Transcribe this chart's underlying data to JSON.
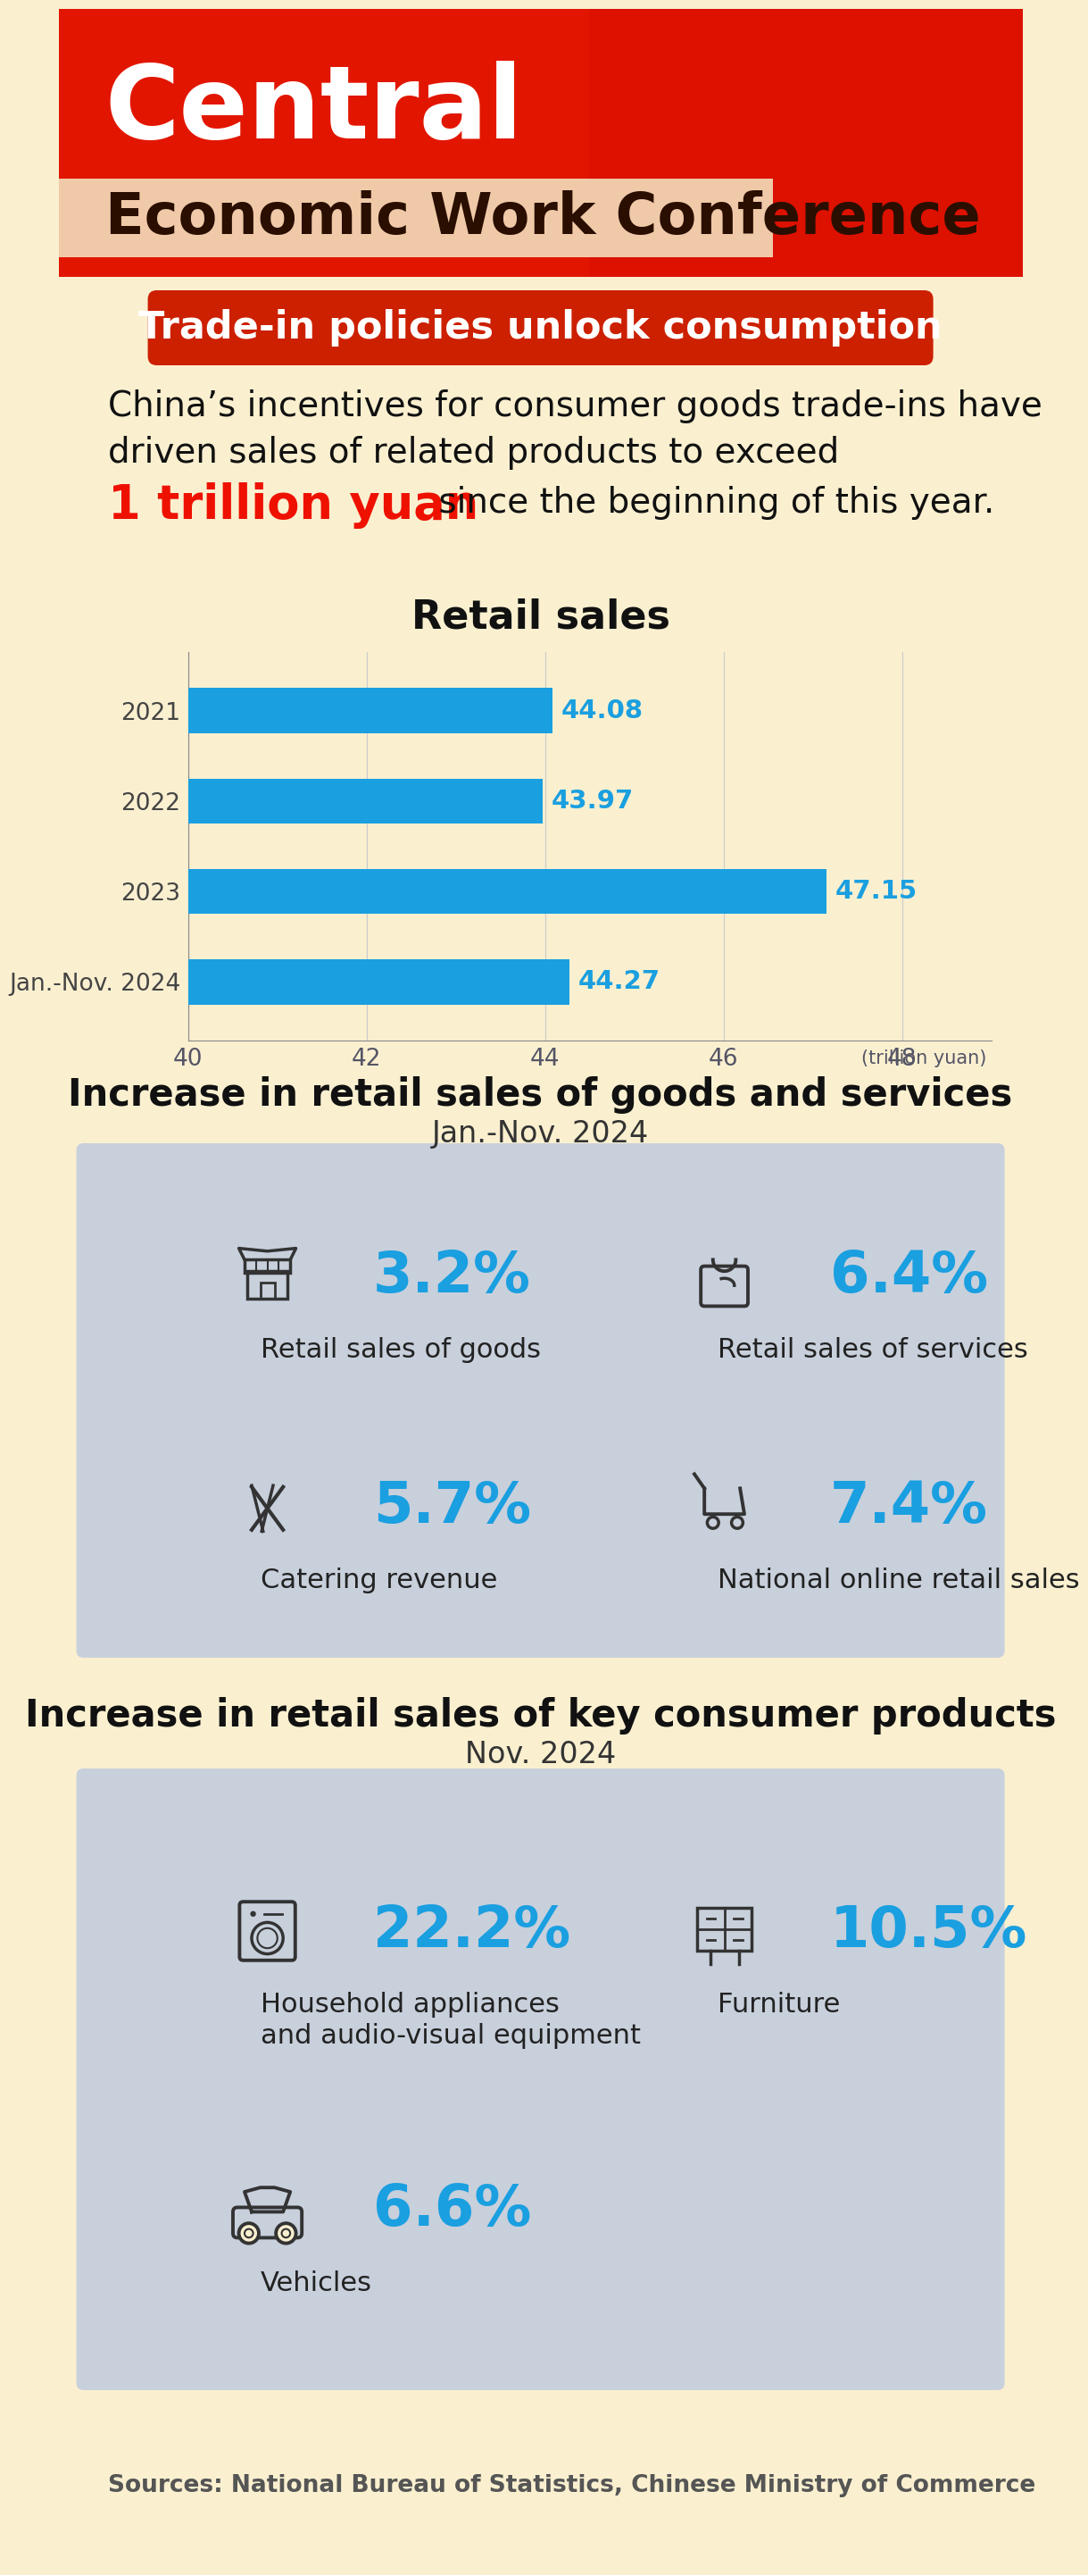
{
  "bg_color": "#FAF0D0",
  "header_red": "#DD1100",
  "title_line1": "Central",
  "title_line2": "Economic Work Conference",
  "section1_label": "Trade-in policies unlock consumption",
  "intro_line1": "China’s incentives for consumer goods trade-ins have",
  "intro_line2": "driven sales of related products to exceed",
  "intro_highlight": "1 trillion yuan",
  "intro_suffix": " since the beginning of this year.",
  "chart_title": "Retail sales",
  "bar_years": [
    "2021",
    "2022",
    "2023",
    "Jan.-Nov. 2024"
  ],
  "bar_values": [
    44.08,
    43.97,
    47.15,
    44.27
  ],
  "bar_color": "#1A9FE0",
  "x_min": 40,
  "x_max": 49,
  "x_ticks": [
    40,
    42,
    44,
    46,
    48
  ],
  "x_unit": "(trillion yuan)",
  "sec2_title": "Increase in retail sales of goods and services",
  "sec2_sub": "Jan.-Nov. 2024",
  "sec2_box_color": "#C8D0DC",
  "sec2_items": [
    {
      "pct": "3.2%",
      "label": "Retail sales of goods"
    },
    {
      "pct": "6.4%",
      "label": "Retail sales of services"
    },
    {
      "pct": "5.7%",
      "label": "Catering revenue"
    },
    {
      "pct": "7.4%",
      "label": "National online retail sales"
    }
  ],
  "sec3_title": "Increase in retail sales of key consumer products",
  "sec3_sub": "Nov. 2024",
  "sec3_box_color": "#C8D0DC",
  "sec3_items": [
    {
      "pct": "22.2%",
      "label": "Household appliances\nand audio-visual equipment"
    },
    {
      "pct": "10.5%",
      "label": "Furniture"
    },
    {
      "pct": "6.6%",
      "label": "Vehicles"
    }
  ],
  "pct_color": "#1A9FE0",
  "label_color": "#222222",
  "sources_text": "Sources: National Bureau of Statistics, Chinese Ministry of Commerce"
}
